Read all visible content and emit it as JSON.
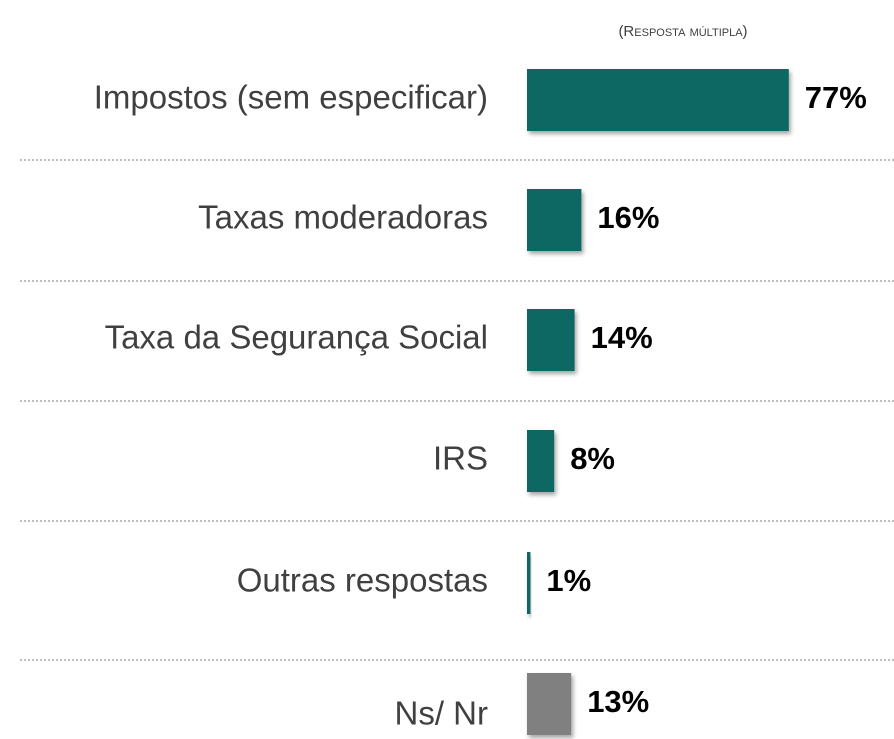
{
  "chart_data": {
    "type": "bar",
    "subtitle": "(Resposta múltipla)",
    "categories": [
      "Impostos (sem especificar)",
      "Taxas moderadoras",
      "Taxa da Segurança Social",
      "IRS",
      "Outras respostas",
      "Ns/ Nr"
    ],
    "values": [
      77,
      16,
      14,
      8,
      1,
      13
    ],
    "value_labels": [
      "77%",
      "16%",
      "14%",
      "8%",
      "1%",
      "13%"
    ],
    "colors": [
      "#0b6763",
      "#0b6763",
      "#0b6763",
      "#0b6763",
      "#0b6763",
      "#808080"
    ]
  }
}
